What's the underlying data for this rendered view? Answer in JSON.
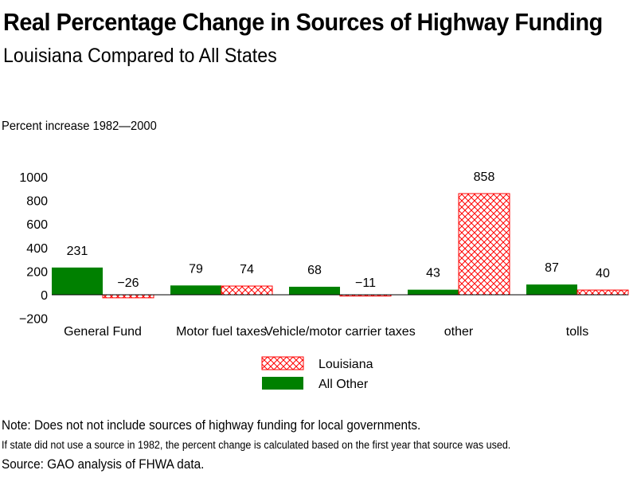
{
  "chart_data": {
    "type": "bar",
    "title": "Real Percentage Change in Sources of Highway Funding",
    "subtitle": "Louisiana Compared to All States",
    "ylabel": "Percent increase 1982—2000",
    "xlabel": "",
    "ylim": [
      -200,
      1000
    ],
    "yticks": [
      1000,
      800,
      600,
      400,
      200,
      0,
      -200
    ],
    "ytick_labels": [
      "1000",
      "800",
      "600",
      "400",
      "200",
      "0",
      "−200"
    ],
    "grid": false,
    "legend_position": "bottom-center",
    "categories": [
      "General Fund",
      "Motor fuel taxes",
      "Vehicle/motor carrier taxes",
      "other",
      "tolls"
    ],
    "series": [
      {
        "name": "All Other",
        "color": "#008000",
        "pattern": "solid",
        "values": [
          231,
          79,
          68,
          43,
          87
        ],
        "labels": [
          "231",
          "79",
          "68",
          "43",
          "87"
        ]
      },
      {
        "name": "Louisiana",
        "color": "#ff0000",
        "pattern": "crosshatch",
        "values": [
          -26,
          74,
          -11,
          858,
          40
        ],
        "labels": [
          "−26",
          "74",
          "−11",
          "858",
          "40"
        ]
      }
    ],
    "legend": [
      {
        "name": "Louisiana",
        "color": "#ff0000",
        "pattern": "crosshatch"
      },
      {
        "name": "All Other",
        "color": "#008000",
        "pattern": "solid"
      }
    ]
  },
  "notes": {
    "note": "Note: Does not not include sources of highway funding for local governments.",
    "detail": "If state did not use a source in 1982, the percent change is calculated based on the first year that source was used.",
    "source": "Source: GAO analysis of FHWA data."
  }
}
